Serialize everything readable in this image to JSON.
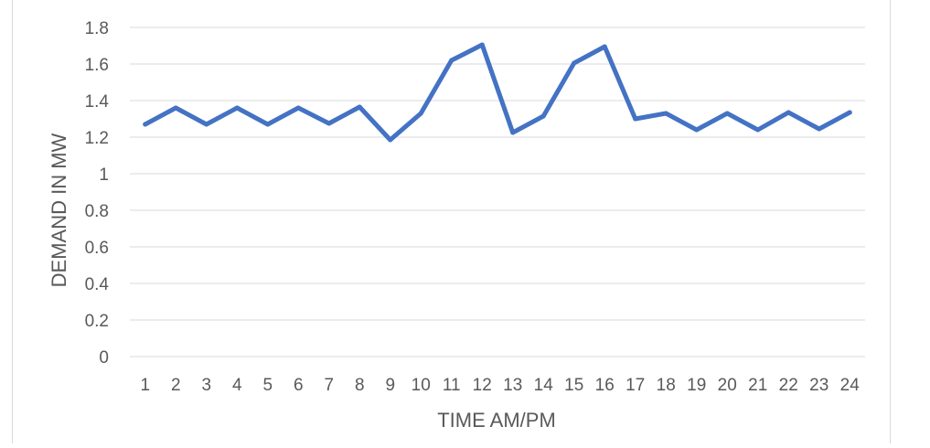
{
  "chart_data": {
    "type": "line",
    "title": "",
    "xlabel": "TIME AM/PM",
    "ylabel": "DEMAND IN MW",
    "x": [
      1,
      2,
      3,
      4,
      5,
      6,
      7,
      8,
      9,
      10,
      11,
      12,
      13,
      14,
      15,
      16,
      17,
      18,
      19,
      20,
      21,
      22,
      23,
      24
    ],
    "y_ticks": [
      0,
      0.2,
      0.4,
      0.6,
      0.8,
      1,
      1.2,
      1.4,
      1.6,
      1.8
    ],
    "y_tick_labels": [
      "0",
      "0.2",
      "0.4",
      "0.6",
      "0.8",
      "1",
      "1.2",
      "1.4",
      "1.6",
      "1.8"
    ],
    "ylim": [
      0,
      1.8
    ],
    "grid": "horizontal",
    "legend": "none",
    "series": [
      {
        "values": [
          1.27,
          1.36,
          1.27,
          1.36,
          1.27,
          1.36,
          1.275,
          1.365,
          1.185,
          1.33,
          1.62,
          1.705,
          1.225,
          1.315,
          1.605,
          1.695,
          1.3,
          1.33,
          1.24,
          1.33,
          1.24,
          1.335,
          1.245,
          1.335
        ],
        "color": "#4472c4"
      }
    ],
    "colors": {
      "grid": "#d9d9d9",
      "text": "#595959",
      "line": "#4472c4"
    }
  }
}
